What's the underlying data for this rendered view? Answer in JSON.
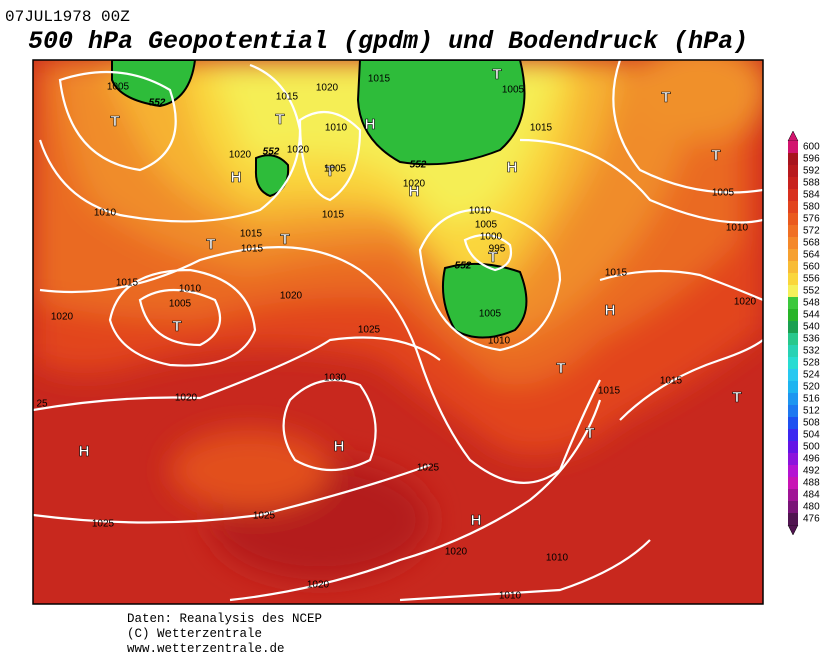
{
  "header": {
    "date": "07JUL1978 00Z",
    "title": "500 hPa Geopotential (gpdm) und Bodendruck (hPa)"
  },
  "map": {
    "pressure_centers": [
      "T",
      "T",
      "H",
      "T",
      "H",
      "T",
      "H",
      "H",
      "T",
      "T",
      "T",
      "T",
      "T",
      "T",
      "H",
      "T",
      "T",
      "T",
      "H",
      "H",
      "H"
    ],
    "isobar_labels": [
      "1005",
      "1015",
      "1020",
      "1015",
      "1005",
      "1010",
      "1015",
      "1020",
      "1020",
      "1005",
      "1020",
      "1010",
      "1015",
      "1015",
      "1015",
      "1010",
      "1005",
      "1000",
      "995",
      "1005",
      "1010",
      "1015",
      "1010",
      "1005",
      "1020",
      "1015",
      "1020",
      "1020",
      "1025",
      "1005",
      "1010",
      "1030",
      "1015",
      "1015",
      "1020",
      "25",
      "1025",
      "1025",
      "1025",
      "1020",
      "1010",
      "1020",
      "1010"
    ],
    "contour_labels": [
      "552",
      "552",
      "552",
      "552"
    ]
  },
  "legend": {
    "levels": [
      600,
      596,
      592,
      588,
      584,
      580,
      576,
      572,
      568,
      564,
      560,
      556,
      552,
      548,
      544,
      540,
      536,
      532,
      528,
      524,
      520,
      516,
      512,
      508,
      504,
      500,
      496,
      492,
      488,
      484,
      480,
      476
    ],
    "colors": [
      "#d2146e",
      "#a8141e",
      "#b81a1e",
      "#c8221e",
      "#d8301e",
      "#e2441e",
      "#ea5a1e",
      "#f07024",
      "#f4882a",
      "#f6a030",
      "#f8bc36",
      "#fad63c",
      "#f5f05a",
      "#3cc83c",
      "#28b428",
      "#1aa050",
      "#28c88c",
      "#28d2b4",
      "#28dcd2",
      "#28c8f0",
      "#1eb4f0",
      "#1e96f0",
      "#1e78f0",
      "#1e50f0",
      "#3c28f0",
      "#6414e6",
      "#8c14dc",
      "#b414d2",
      "#c814b4",
      "#a01496",
      "#7a1478",
      "#501450"
    ]
  },
  "footer": {
    "lines": [
      "Daten: Reanalysis des NCEP",
      "(C) Wetterzentrale",
      "www.wetterzentrale.de"
    ]
  }
}
